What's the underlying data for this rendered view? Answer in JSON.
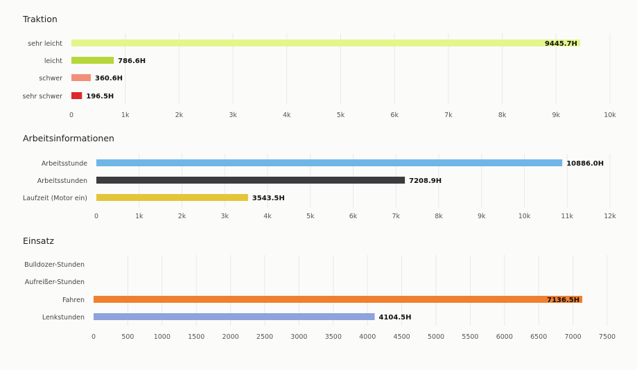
{
  "chart_data": [
    {
      "type": "bar",
      "title": "Traktion",
      "categories": [
        "sehr leicht",
        "leicht",
        "schwer",
        "sehr schwer"
      ],
      "values": [
        9445.7,
        786.6,
        360.6,
        196.5
      ],
      "value_labels": [
        "9445.7H",
        "786.6H",
        "360.6H",
        "196.5H"
      ],
      "colors": [
        "#e4f58a",
        "#b6d63a",
        "#f0907a",
        "#dc2a2a"
      ],
      "xlim": [
        0,
        10000
      ],
      "ticks": [
        0,
        1000,
        2000,
        3000,
        4000,
        5000,
        6000,
        7000,
        8000,
        9000,
        10000
      ],
      "tick_labels": [
        "0",
        "1k",
        "2k",
        "3k",
        "4k",
        "5k",
        "6k",
        "7k",
        "8k",
        "9k",
        "10k"
      ],
      "value_label_inside_last": [
        true,
        false,
        false,
        false
      ],
      "grid": true
    },
    {
      "type": "bar",
      "title": "Arbeitsinformationen",
      "categories": [
        "Arbeitsstunde",
        "Arbeitsstunden",
        "Laufzeit (Motor ein)"
      ],
      "values": [
        10886.0,
        7208.9,
        3543.5
      ],
      "value_labels": [
        "10886.0H",
        "7208.9H",
        "3543.5H"
      ],
      "colors": [
        "#6fb6e8",
        "#3b3b40",
        "#e3c53a"
      ],
      "xlim": [
        0,
        12000
      ],
      "ticks": [
        0,
        1000,
        2000,
        3000,
        4000,
        5000,
        6000,
        7000,
        8000,
        9000,
        10000,
        11000,
        12000
      ],
      "tick_labels": [
        "0",
        "1k",
        "2k",
        "3k",
        "4k",
        "5k",
        "6k",
        "7k",
        "8k",
        "9k",
        "10k",
        "11k",
        "12k"
      ],
      "value_label_inside_last": [
        false,
        false,
        false
      ],
      "grid": true
    },
    {
      "type": "bar",
      "title": "Einsatz",
      "categories": [
        "Bulldozer-Stunden",
        "Aufreißer-Stunden",
        "Fahren",
        "Lenkstunden"
      ],
      "values": [
        0,
        0,
        7136.5,
        4104.5
      ],
      "value_labels": [
        "",
        "",
        "7136.5H",
        "4104.5H"
      ],
      "colors": [
        "#cccccc",
        "#cccccc",
        "#f07f2f",
        "#8ea3dc"
      ],
      "xlim": [
        0,
        7500
      ],
      "ticks": [
        0,
        500,
        1000,
        1500,
        2000,
        2500,
        3000,
        3500,
        4000,
        4500,
        5000,
        5500,
        6000,
        6500,
        7000,
        7500
      ],
      "tick_labels": [
        "0",
        "500",
        "1000",
        "1500",
        "2000",
        "2500",
        "3000",
        "3500",
        "4000",
        "4500",
        "5000",
        "5500",
        "6000",
        "6500",
        "7000",
        "7500"
      ],
      "value_label_inside_last": [
        false,
        false,
        true,
        false
      ],
      "grid": true
    }
  ]
}
